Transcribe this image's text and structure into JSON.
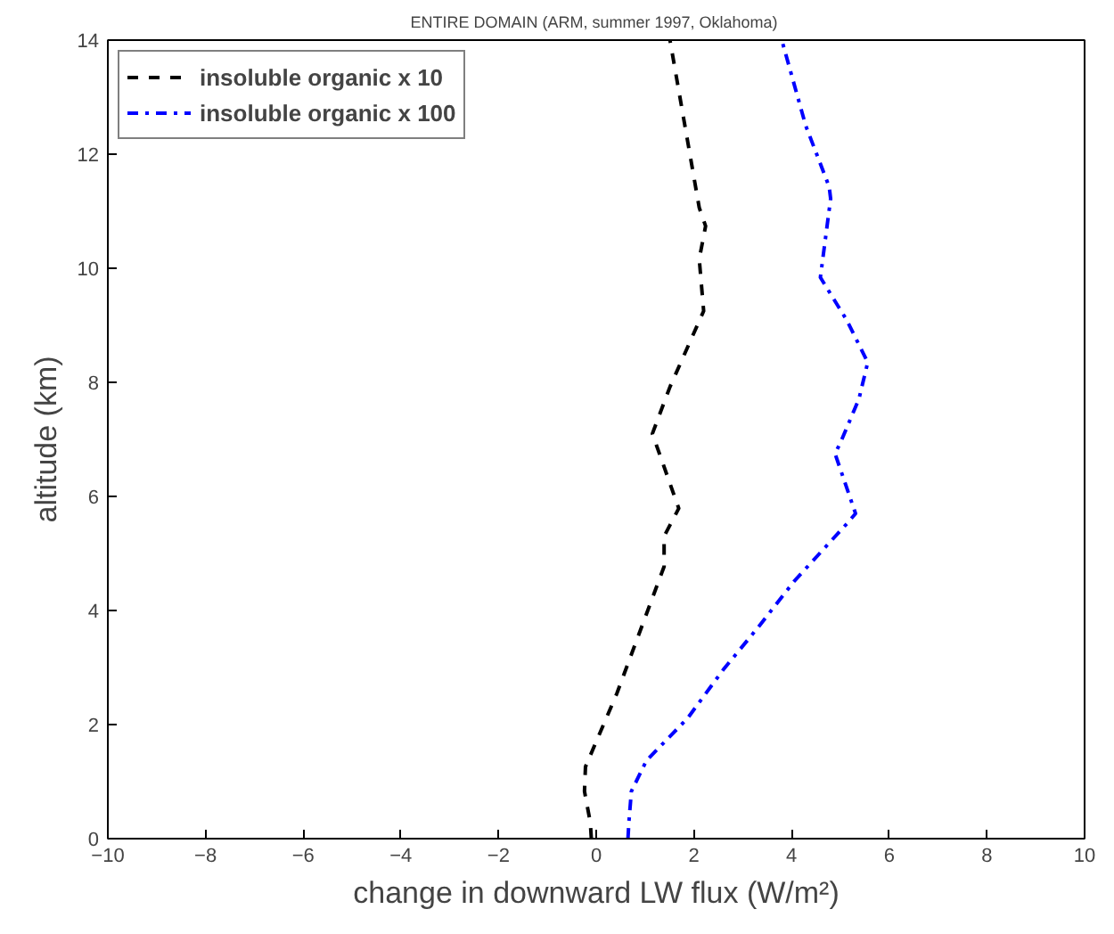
{
  "chart_data": {
    "type": "line",
    "title": "ENTIRE DOMAIN  (ARM, summer 1997, Oklahoma)",
    "xlabel": "change in downward LW flux (W/m²)",
    "ylabel": "altitude (km)",
    "xlim": [
      -10,
      10
    ],
    "ylim": [
      0,
      14
    ],
    "xticks": [
      -10,
      -8,
      -6,
      -4,
      -2,
      0,
      2,
      4,
      6,
      8,
      10
    ],
    "yticks": [
      0,
      2,
      4,
      6,
      8,
      10,
      12,
      14
    ],
    "grid": false,
    "legend": "top left",
    "marker": "none",
    "series": [
      {
        "name": "insoluble organic x 10",
        "color": "#000000",
        "line_style": "dashed",
        "x": [
          -0.1,
          -0.12,
          -0.24,
          -0.22,
          0.42,
          1.39,
          1.39,
          1.69,
          1.15,
          1.51,
          2.2,
          2.11,
          2.24,
          2.11,
          1.51
        ],
        "values": [
          0,
          0.28,
          0.83,
          1.26,
          2.54,
          4.77,
          5.3,
          5.79,
          7.1,
          7.92,
          9.25,
          10.16,
          10.74,
          11.06,
          14
        ]
      },
      {
        "name": "insoluble organic x 100",
        "color": "#0000ff",
        "line_style": "dashdot",
        "x": [
          0.65,
          0.67,
          0.72,
          1.03,
          1.87,
          2.6,
          3.32,
          4.05,
          5.13,
          5.31,
          4.89,
          5.01,
          5.38,
          5.56,
          5.13,
          4.59,
          4.8,
          4.77,
          4.29,
          3.8
        ],
        "values": [
          0,
          0.3,
          0.83,
          1.37,
          2.11,
          2.96,
          3.71,
          4.51,
          5.52,
          5.7,
          6.75,
          6.96,
          7.71,
          8.35,
          9.09,
          9.84,
          11.22,
          11.43,
          12.5,
          14
        ]
      }
    ]
  }
}
